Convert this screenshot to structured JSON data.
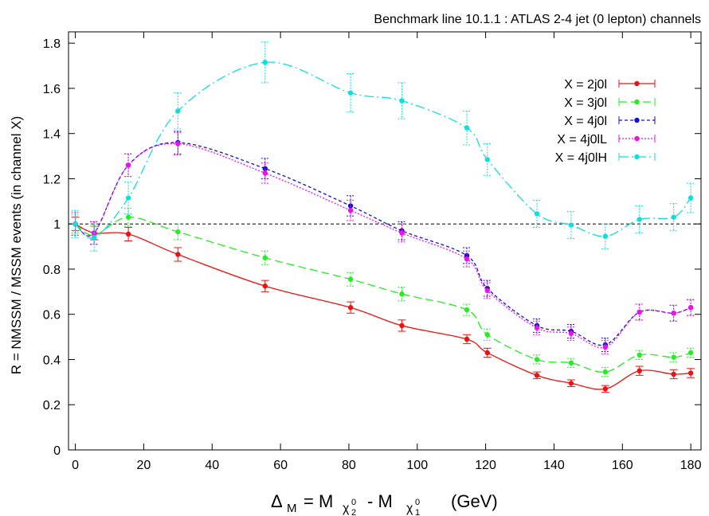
{
  "chart_data": {
    "type": "line",
    "title": "Benchmark line 10.1.1 : ATLAS 2-4 jet (0 lepton) channels",
    "ylabel": "R = NMSSM / MSSM events (in channel X)",
    "xlabel": {
      "delta": "Δ",
      "delta_sub": "M",
      "eq": "= M",
      "chi": "χ",
      "sub2": "2",
      "minus": "- M",
      "sub1": "1",
      "zero": "0",
      "unit": "(GeV)"
    },
    "xlim": [
      -2,
      183
    ],
    "ylim": [
      0,
      1.85
    ],
    "x_ticks": [
      0,
      20,
      40,
      60,
      80,
      100,
      120,
      140,
      160,
      180
    ],
    "y_ticks": [
      0,
      0.2,
      0.4,
      0.6,
      0.8,
      1,
      1.2,
      1.4,
      1.6,
      1.8
    ],
    "reference_line": 1,
    "legend_position": "top-right",
    "x": [
      0,
      5.5,
      15.5,
      30,
      55.5,
      80.5,
      95.5,
      114.5,
      120.5,
      135,
      145,
      155,
      165,
      175,
      180
    ],
    "series": [
      {
        "name": "X = 2j0l",
        "color": "#ee1111",
        "dash": "",
        "values": [
          1.0,
          0.96,
          0.955,
          0.865,
          0.725,
          0.63,
          0.55,
          0.49,
          0.43,
          0.33,
          0.295,
          0.27,
          0.35,
          0.335,
          0.34
        ],
        "errors": [
          0.03,
          0.03,
          0.03,
          0.03,
          0.025,
          0.025,
          0.025,
          0.02,
          0.02,
          0.015,
          0.015,
          0.015,
          0.02,
          0.02,
          0.02
        ]
      },
      {
        "name": "X = 3j0l",
        "color": "#22ee22",
        "dash": "10,5",
        "values": [
          1.0,
          0.95,
          1.03,
          0.965,
          0.85,
          0.755,
          0.69,
          0.62,
          0.51,
          0.4,
          0.385,
          0.345,
          0.42,
          0.41,
          0.43
        ],
        "errors": [
          0.04,
          0.04,
          0.04,
          0.035,
          0.03,
          0.03,
          0.03,
          0.025,
          0.025,
          0.02,
          0.02,
          0.02,
          0.02,
          0.02,
          0.02
        ]
      },
      {
        "name": "X = 4j0l",
        "color": "#1111cc",
        "dash": "4,3",
        "values": [
          1.0,
          0.96,
          1.26,
          1.36,
          1.245,
          1.08,
          0.97,
          0.86,
          0.715,
          0.55,
          0.525,
          0.465,
          0.61,
          0.605,
          0.63
        ],
        "errors": [
          0.05,
          0.05,
          0.05,
          0.05,
          0.045,
          0.045,
          0.04,
          0.035,
          0.035,
          0.03,
          0.03,
          0.03,
          0.035,
          0.035,
          0.035
        ]
      },
      {
        "name": "X = 4j0lL",
        "color": "#ee11ee",
        "dash": "2,2",
        "values": [
          1.0,
          0.96,
          1.26,
          1.355,
          1.225,
          1.06,
          0.96,
          0.845,
          0.705,
          0.54,
          0.515,
          0.455,
          0.61,
          0.605,
          0.63
        ],
        "errors": [
          0.05,
          0.05,
          0.05,
          0.05,
          0.045,
          0.045,
          0.04,
          0.035,
          0.035,
          0.03,
          0.03,
          0.03,
          0.035,
          0.035,
          0.035
        ]
      },
      {
        "name": "X = 4j0lH",
        "color": "#11dddd",
        "dash": "12,4,2,4",
        "values": [
          1.0,
          0.94,
          1.115,
          1.5,
          1.715,
          1.58,
          1.545,
          1.425,
          1.285,
          1.045,
          0.995,
          0.945,
          1.02,
          1.03,
          1.115
        ],
        "errors": [
          0.06,
          0.06,
          0.07,
          0.08,
          0.09,
          0.085,
          0.08,
          0.075,
          0.07,
          0.06,
          0.06,
          0.055,
          0.06,
          0.06,
          0.065
        ]
      }
    ]
  }
}
